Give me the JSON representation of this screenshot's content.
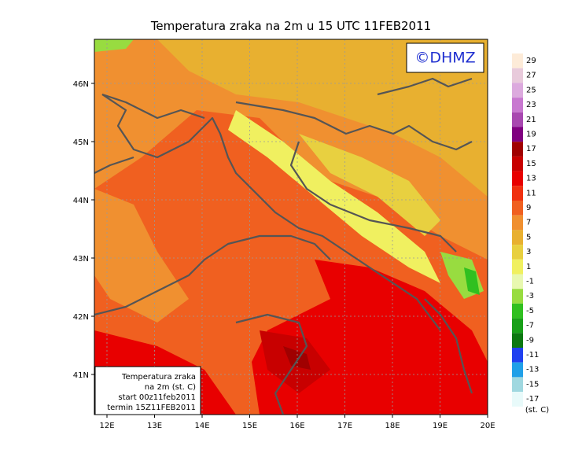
{
  "header": {
    "title": "Temperatura zraka na 2m u 15 UTC 11FEB2011"
  },
  "map": {
    "copyright": "©DHMZ",
    "lat_labels": [
      "46N",
      "45N",
      "44N",
      "43N",
      "42N",
      "41N"
    ],
    "lon_labels": [
      "12E",
      "13E",
      "14E",
      "15E",
      "16E",
      "17E",
      "18E",
      "19E",
      "20E"
    ],
    "info_box": [
      "Temperatura zraka",
      "na 2m (st. C)",
      "start 00z11feb2011",
      "termin 15Z11FEB2011"
    ]
  },
  "colorbar": {
    "labels": [
      29,
      27,
      25,
      23,
      21,
      19,
      17,
      15,
      13,
      11,
      9,
      7,
      5,
      3,
      1,
      -1,
      -3,
      -5,
      -7,
      -9,
      -11,
      -13,
      -15,
      -17
    ],
    "colors": [
      "#fdebd8",
      "#e8cadb",
      "#dcaade",
      "#c878d0",
      "#a848b0",
      "#800080",
      "#a00000",
      "#c80000",
      "#e80000",
      "#f03010",
      "#f06020",
      "#f09030",
      "#e8b030",
      "#e8d040",
      "#f0f060",
      "#e8f8b0",
      "#98dc40",
      "#30c020",
      "#18a018",
      "#0c7810",
      "#2040f0",
      "#20a0e8",
      "#a0d8e0",
      "#e8fafa"
    ],
    "unit": "(st. C)"
  }
}
